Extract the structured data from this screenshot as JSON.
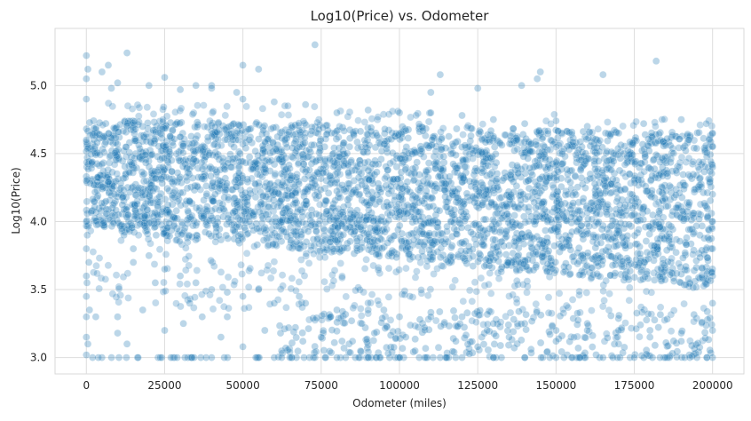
{
  "chart_data": {
    "type": "scatter",
    "title": "Log10(Price) vs. Odometer",
    "xlabel": "Odometer (miles)",
    "ylabel": "Log10(Price)",
    "xlim": [
      -10000,
      210000
    ],
    "ylim": [
      2.88,
      5.42
    ],
    "x_ticks": [
      0,
      25000,
      50000,
      75000,
      100000,
      125000,
      150000,
      175000,
      200000
    ],
    "x_tick_labels": [
      "0",
      "25000",
      "50000",
      "75000",
      "100000",
      "125000",
      "150000",
      "175000",
      "200000"
    ],
    "y_ticks": [
      3.0,
      3.5,
      4.0,
      4.5,
      5.0
    ],
    "y_tick_labels": [
      "3.0",
      "3.5",
      "4.0",
      "4.5",
      "5.0"
    ],
    "grid": true,
    "marker_color": "#1f77b4",
    "marker_alpha": 0.3,
    "points": [
      [
        0,
        5.22
      ],
      [
        500,
        5.12
      ],
      [
        0,
        5.05
      ],
      [
        0,
        4.9
      ],
      [
        0,
        4.6
      ],
      [
        0,
        4.3
      ],
      [
        0,
        4.0
      ],
      [
        0,
        3.8
      ],
      [
        0,
        3.6
      ],
      [
        0,
        3.45
      ],
      [
        0,
        3.3
      ],
      [
        0,
        3.15
      ],
      [
        0,
        3.02
      ],
      [
        200,
        3.55
      ],
      [
        300,
        3.9
      ],
      [
        800,
        3.7
      ],
      [
        1000,
        3.35
      ],
      [
        500,
        3.1
      ],
      [
        2000,
        3.0
      ],
      [
        3000,
        3.3
      ],
      [
        5000,
        5.1
      ],
      [
        7000,
        5.15
      ],
      [
        8000,
        4.98
      ],
      [
        13000,
        5.24
      ],
      [
        10000,
        3.18
      ],
      [
        10000,
        3.3
      ],
      [
        13000,
        3.1
      ],
      [
        15000,
        3.7
      ],
      [
        18000,
        3.35
      ],
      [
        22000,
        3.55
      ],
      [
        25000,
        5.06
      ],
      [
        25000,
        3.2
      ],
      [
        27000,
        3.0
      ],
      [
        29000,
        3.0
      ],
      [
        31000,
        3.25
      ],
      [
        33000,
        3.4
      ],
      [
        35000,
        5.0
      ],
      [
        37000,
        3.3
      ],
      [
        40000,
        3.0
      ],
      [
        40000,
        5.0
      ],
      [
        43000,
        3.15
      ],
      [
        45000,
        3.3
      ],
      [
        48000,
        4.95
      ],
      [
        50000,
        5.15
      ],
      [
        50000,
        3.08
      ],
      [
        55000,
        5.12
      ],
      [
        55000,
        3.5
      ],
      [
        57000,
        3.2
      ],
      [
        60000,
        3.0
      ],
      [
        62000,
        3.18
      ],
      [
        65000,
        3.0
      ],
      [
        68000,
        3.45
      ],
      [
        73000,
        5.3
      ],
      [
        73000,
        3.0
      ],
      [
        75000,
        3.15
      ],
      [
        78000,
        3.3
      ],
      [
        80000,
        3.0
      ],
      [
        85000,
        3.12
      ],
      [
        88000,
        3.25
      ],
      [
        90000,
        3.0
      ],
      [
        92000,
        3.18
      ],
      [
        95000,
        3.35
      ],
      [
        100000,
        3.0
      ],
      [
        102000,
        3.15
      ],
      [
        105000,
        3.05
      ],
      [
        108000,
        3.22
      ],
      [
        110000,
        4.95
      ],
      [
        113000,
        5.08
      ],
      [
        113000,
        3.0
      ],
      [
        118000,
        3.12
      ],
      [
        120000,
        3.0
      ],
      [
        125000,
        4.98
      ],
      [
        125000,
        3.08
      ],
      [
        128000,
        3.2
      ],
      [
        130000,
        3.0
      ],
      [
        135000,
        3.15
      ],
      [
        139000,
        5.0
      ],
      [
        140000,
        3.0
      ],
      [
        144000,
        5.05
      ],
      [
        145000,
        5.1
      ],
      [
        148000,
        3.0
      ],
      [
        150000,
        3.12
      ],
      [
        155000,
        3.0
      ],
      [
        160000,
        3.2
      ],
      [
        165000,
        5.08
      ],
      [
        165000,
        3.0
      ],
      [
        170000,
        3.1
      ],
      [
        175000,
        3.0
      ],
      [
        180000,
        3.15
      ],
      [
        182000,
        5.18
      ],
      [
        185000,
        3.0
      ],
      [
        190000,
        3.12
      ],
      [
        195000,
        3.0
      ],
      [
        200000,
        3.0
      ],
      [
        200000,
        3.2
      ],
      [
        200000,
        3.4
      ],
      [
        200000,
        3.6
      ],
      [
        200000,
        3.8
      ],
      [
        200000,
        4.0
      ],
      [
        200000,
        4.2
      ],
      [
        200000,
        4.4
      ],
      [
        200000,
        4.55
      ],
      [
        200000,
        4.65
      ],
      [
        198000,
        4.72
      ],
      [
        190000,
        4.75
      ],
      [
        178000,
        4.72
      ],
      [
        170000,
        4.65
      ],
      [
        160000,
        4.7
      ],
      [
        150000,
        4.74
      ],
      [
        140000,
        4.72
      ],
      [
        130000,
        4.75
      ],
      [
        120000,
        4.78
      ],
      [
        110000,
        4.8
      ],
      [
        100000,
        4.8
      ],
      [
        90000,
        4.82
      ],
      [
        80000,
        4.8
      ],
      [
        70000,
        4.86
      ],
      [
        60000,
        4.88
      ],
      [
        50000,
        4.9
      ],
      [
        40000,
        4.98
      ],
      [
        30000,
        4.97
      ],
      [
        20000,
        5.0
      ],
      [
        10000,
        5.02
      ],
      [
        12000,
        3.9
      ],
      [
        15000,
        3.8
      ],
      [
        20000,
        3.75
      ],
      [
        25000,
        3.65
      ],
      [
        30000,
        3.6
      ],
      [
        35000,
        3.55
      ],
      [
        40000,
        3.5
      ],
      [
        45000,
        3.48
      ],
      [
        50000,
        3.45
      ],
      [
        60000,
        3.4
      ],
      [
        70000,
        3.4
      ],
      [
        80000,
        3.35
      ],
      [
        90000,
        3.35
      ],
      [
        100000,
        3.3
      ],
      [
        110000,
        3.3
      ],
      [
        120000,
        3.3
      ],
      [
        130000,
        3.25
      ],
      [
        140000,
        3.25
      ],
      [
        150000,
        3.2
      ],
      [
        160000,
        3.25
      ],
      [
        170000,
        3.2
      ],
      [
        180000,
        3.2
      ],
      [
        190000,
        3.18
      ]
    ]
  }
}
